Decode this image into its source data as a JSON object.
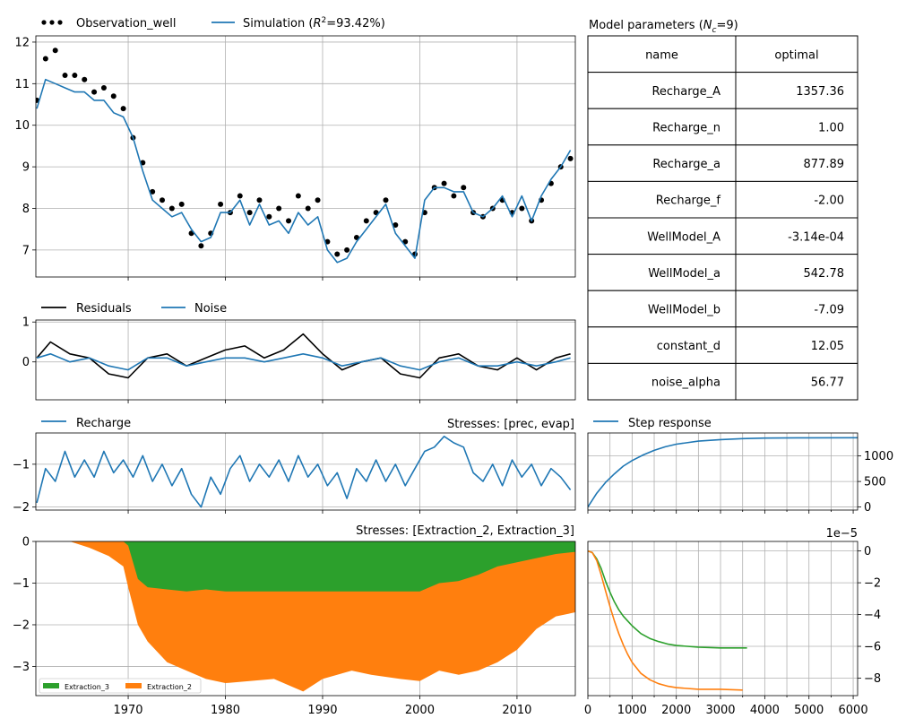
{
  "colors": {
    "observation": "#000000",
    "simulation": "#1f77b4",
    "residuals": "#000000",
    "noise": "#1f77b4",
    "recharge": "#1f77b4",
    "step": "#1f77b4",
    "extraction_3": "#2ca02c",
    "extraction_2": "#ff7f0e",
    "grid": "#b0b0b0"
  },
  "fit_panel": {
    "legend_obs": "Observation_well",
    "legend_sim_prefix": "Simulation (",
    "legend_sim_r2": "R",
    "legend_sim_sup": "2",
    "legend_sim_suffix": "=93.42%)"
  },
  "residual_panel": {
    "legend_res": "Residuals",
    "legend_noise": "Noise"
  },
  "recharge_panel": {
    "legend": "Recharge",
    "title": "Stresses: [prec, evap]"
  },
  "well_panel": {
    "title": "Stresses: [Extraction_2, Extraction_3]",
    "legend_e3": "Extraction_3",
    "legend_e2": "Extraction_2"
  },
  "step_panel": {
    "legend": "Step response",
    "offset_label": "1e−5"
  },
  "params_table": {
    "title_prefix": "Model parameters (",
    "title_n": "N",
    "title_sub": "c",
    "title_suffix": "=9)",
    "header_name": "name",
    "header_optimal": "optimal",
    "rows": [
      {
        "name": "Recharge_A",
        "value": "1357.36"
      },
      {
        "name": "Recharge_n",
        "value": "1.00"
      },
      {
        "name": "Recharge_a",
        "value": "877.89"
      },
      {
        "name": "Recharge_f",
        "value": "-2.00"
      },
      {
        "name": "WellModel_A",
        "value": "-3.14e-04"
      },
      {
        "name": "WellModel_a",
        "value": "542.78"
      },
      {
        "name": "WellModel_b",
        "value": "-7.09"
      },
      {
        "name": "constant_d",
        "value": "12.05"
      },
      {
        "name": "noise_alpha",
        "value": "56.77"
      }
    ]
  },
  "chart_data": [
    {
      "type": "line",
      "panel": "fit",
      "xlim": [
        1960.5,
        2016
      ],
      "ylim": [
        6.35,
        12.15
      ],
      "x_ticks": [
        1970,
        1980,
        1990,
        2000,
        2010
      ],
      "y_ticks": [
        7,
        8,
        9,
        10,
        11,
        12
      ],
      "grid": true,
      "legend_position": "top-left",
      "series": [
        {
          "name": "Observation_well",
          "style": "dots",
          "x": [
            1960.6,
            1961.5,
            1962.5,
            1963.5,
            1964.5,
            1965.5,
            1966.5,
            1967.5,
            1968.5,
            1969.5,
            1970.5,
            1971.5,
            1972.5,
            1973.5,
            1974.5,
            1975.5,
            1976.5,
            1977.5,
            1978.5,
            1979.5,
            1980.5,
            1981.5,
            1982.5,
            1983.5,
            1984.5,
            1985.5,
            1986.5,
            1987.5,
            1988.5,
            1989.5,
            1990.5,
            1991.5,
            1992.5,
            1993.5,
            1994.5,
            1995.5,
            1996.5,
            1997.5,
            1998.5,
            1999.5,
            2000.5,
            2001.5,
            2002.5,
            2003.5,
            2004.5,
            2005.5,
            2006.5,
            2007.5,
            2008.5,
            2009.5,
            2010.5,
            2011.5,
            2012.5,
            2013.5,
            2014.5,
            2015.5
          ],
          "y": [
            10.6,
            11.6,
            11.8,
            11.2,
            11.2,
            11.1,
            10.8,
            10.9,
            10.7,
            10.4,
            9.7,
            9.1,
            8.4,
            8.2,
            8.0,
            8.1,
            7.4,
            7.1,
            7.4,
            8.1,
            7.9,
            8.3,
            7.9,
            8.2,
            7.8,
            8.0,
            7.7,
            8.3,
            8.0,
            8.2,
            7.2,
            6.9,
            7.0,
            7.3,
            7.7,
            7.9,
            8.2,
            7.6,
            7.2,
            6.9,
            7.9,
            8.5,
            8.6,
            8.3,
            8.5,
            7.9,
            7.8,
            8.0,
            8.2,
            7.9,
            8.0,
            7.7,
            8.2,
            8.6,
            9.0,
            9.2
          ]
        },
        {
          "name": "Simulation",
          "style": "line",
          "x": [
            1960.6,
            1961.5,
            1962.5,
            1963.5,
            1964.5,
            1965.5,
            1966.5,
            1967.5,
            1968.5,
            1969.5,
            1970.5,
            1971.5,
            1972.5,
            1973.5,
            1974.5,
            1975.5,
            1976.5,
            1977.5,
            1978.5,
            1979.5,
            1980.5,
            1981.5,
            1982.5,
            1983.5,
            1984.5,
            1985.5,
            1986.5,
            1987.5,
            1988.5,
            1989.5,
            1990.5,
            1991.5,
            1992.5,
            1993.5,
            1994.5,
            1995.5,
            1996.5,
            1997.5,
            1998.5,
            1999.5,
            2000.5,
            2001.5,
            2002.5,
            2003.5,
            2004.5,
            2005.5,
            2006.5,
            2007.5,
            2008.5,
            2009.5,
            2010.5,
            2011.5,
            2012.5,
            2013.5,
            2014.5,
            2015.5
          ],
          "y": [
            10.4,
            11.1,
            11.0,
            10.9,
            10.8,
            10.8,
            10.6,
            10.6,
            10.3,
            10.2,
            9.7,
            8.9,
            8.2,
            8.0,
            7.8,
            7.9,
            7.5,
            7.2,
            7.3,
            7.9,
            7.9,
            8.2,
            7.6,
            8.1,
            7.6,
            7.7,
            7.4,
            7.9,
            7.6,
            7.8,
            7.0,
            6.7,
            6.8,
            7.2,
            7.5,
            7.8,
            8.1,
            7.4,
            7.1,
            6.8,
            8.2,
            8.5,
            8.5,
            8.4,
            8.4,
            7.9,
            7.8,
            8.0,
            8.3,
            7.8,
            8.3,
            7.7,
            8.3,
            8.7,
            9.0,
            9.4
          ]
        }
      ]
    },
    {
      "type": "line",
      "panel": "residuals",
      "xlim": [
        1960.5,
        2016
      ],
      "ylim": [
        -0.95,
        1.05
      ],
      "y_ticks": [
        0,
        1
      ],
      "grid": true,
      "legend_position": "top-left",
      "series": [
        {
          "name": "Residuals",
          "x": [
            1960.6,
            1962,
            1964,
            1966,
            1968,
            1970,
            1972,
            1974,
            1976,
            1978,
            1980,
            1982,
            1984,
            1986,
            1988,
            1990,
            1992,
            1994,
            1996,
            1998,
            2000,
            2002,
            2004,
            2006,
            2008,
            2010,
            2012,
            2014,
            2015.5
          ],
          "y": [
            0.1,
            0.5,
            0.2,
            0.1,
            -0.3,
            -0.4,
            0.1,
            0.2,
            -0.1,
            0.1,
            0.3,
            0.4,
            0.1,
            0.3,
            0.7,
            0.2,
            -0.2,
            0.0,
            0.1,
            -0.3,
            -0.4,
            0.1,
            0.2,
            -0.1,
            -0.2,
            0.1,
            -0.2,
            0.1,
            0.2
          ]
        },
        {
          "name": "Noise",
          "x": [
            1960.6,
            1962,
            1964,
            1966,
            1968,
            1970,
            1972,
            1974,
            1976,
            1978,
            1980,
            1982,
            1984,
            1986,
            1988,
            1990,
            1992,
            1994,
            1996,
            1998,
            2000,
            2002,
            2004,
            2006,
            2008,
            2010,
            2012,
            2014,
            2015.5
          ],
          "y": [
            0.1,
            0.2,
            0.0,
            0.1,
            -0.1,
            -0.2,
            0.1,
            0.1,
            -0.1,
            0.0,
            0.1,
            0.1,
            0.0,
            0.1,
            0.2,
            0.1,
            -0.1,
            0.0,
            0.1,
            -0.1,
            -0.2,
            0.0,
            0.1,
            -0.1,
            -0.1,
            0.0,
            -0.1,
            0.0,
            0.1
          ]
        }
      ]
    },
    {
      "type": "line",
      "panel": "recharge",
      "title": "Stresses: [prec, evap]",
      "xlim": [
        1960.5,
        2016
      ],
      "ylim": [
        -2.07,
        -0.27
      ],
      "y_ticks": [
        -2,
        -1
      ],
      "grid": true,
      "legend_position": "top-left",
      "series": [
        {
          "name": "Recharge",
          "x": [
            1960.6,
            1961.5,
            1962.5,
            1963.5,
            1964.5,
            1965.5,
            1966.5,
            1967.5,
            1968.5,
            1969.5,
            1970.5,
            1971.5,
            1972.5,
            1973.5,
            1974.5,
            1975.5,
            1976.5,
            1977.5,
            1978.5,
            1979.5,
            1980.5,
            1981.5,
            1982.5,
            1983.5,
            1984.5,
            1985.5,
            1986.5,
            1987.5,
            1988.5,
            1989.5,
            1990.5,
            1991.5,
            1992.5,
            1993.5,
            1994.5,
            1995.5,
            1996.5,
            1997.5,
            1998.5,
            1999.5,
            2000.5,
            2001.5,
            2002.5,
            2003.5,
            2004.5,
            2005.5,
            2006.5,
            2007.5,
            2008.5,
            2009.5,
            2010.5,
            2011.5,
            2012.5,
            2013.5,
            2014.5,
            2015.5
          ],
          "y": [
            -1.9,
            -1.1,
            -1.4,
            -0.7,
            -1.3,
            -0.9,
            -1.3,
            -0.7,
            -1.2,
            -0.9,
            -1.3,
            -0.8,
            -1.4,
            -1.0,
            -1.5,
            -1.1,
            -1.7,
            -2.0,
            -1.3,
            -1.7,
            -1.1,
            -0.8,
            -1.4,
            -1.0,
            -1.3,
            -0.9,
            -1.4,
            -0.8,
            -1.3,
            -1.0,
            -1.5,
            -1.2,
            -1.8,
            -1.1,
            -1.4,
            -0.9,
            -1.4,
            -1.0,
            -1.5,
            -1.1,
            -0.7,
            -0.6,
            -0.35,
            -0.5,
            -0.6,
            -1.2,
            -1.4,
            -1.0,
            -1.5,
            -0.9,
            -1.3,
            -1.0,
            -1.5,
            -1.1,
            -1.3,
            -1.6
          ]
        }
      ]
    },
    {
      "type": "area",
      "panel": "wells",
      "title": "Stresses: [Extraction_2, Extraction_3]",
      "xlim": [
        1960.5,
        2016
      ],
      "ylim": [
        -3.7,
        0
      ],
      "x_ticks": [
        1970,
        1980,
        1990,
        2000,
        2010
      ],
      "y_ticks": [
        -3,
        -2,
        -1,
        0
      ],
      "grid": true,
      "legend_position": "bottom-left",
      "series": [
        {
          "name": "Extraction_3",
          "stacked_from_zero": true,
          "x": [
            1960.5,
            1964,
            1966,
            1968,
            1969.5,
            1970,
            1971,
            1972,
            1974,
            1976,
            1978,
            1980,
            1985,
            1990,
            1995,
            1998,
            2000,
            2002,
            2004,
            2006,
            2008,
            2010,
            2012,
            2014,
            2016
          ],
          "y": [
            0,
            0,
            0,
            0,
            0,
            -0.1,
            -0.9,
            -1.1,
            -1.15,
            -1.2,
            -1.15,
            -1.2,
            -1.2,
            -1.2,
            -1.2,
            -1.2,
            -1.2,
            -1.0,
            -0.95,
            -0.8,
            -0.6,
            -0.5,
            -0.4,
            -0.3,
            -0.25
          ]
        },
        {
          "name": "Extraction_2",
          "stacked_below": "Extraction_3",
          "x": [
            1960.5,
            1964,
            1966,
            1968,
            1969.5,
            1970,
            1971,
            1972,
            1974,
            1976,
            1978,
            1980,
            1985,
            1988,
            1990,
            1993,
            1995,
            1998,
            2000,
            2002,
            2004,
            2006,
            2008,
            2010,
            2012,
            2014,
            2016
          ],
          "y": [
            0,
            0,
            -0.15,
            -0.35,
            -0.6,
            -1.1,
            -2.0,
            -2.4,
            -2.9,
            -3.1,
            -3.3,
            -3.4,
            -3.3,
            -3.6,
            -3.3,
            -3.1,
            -3.2,
            -3.3,
            -3.35,
            -3.1,
            -3.2,
            -3.1,
            -2.9,
            -2.6,
            -2.1,
            -1.8,
            -1.7
          ]
        }
      ]
    },
    {
      "type": "line",
      "panel": "step_response_recharge",
      "xlim": [
        0,
        6100
      ],
      "ylim": [
        -60,
        1450
      ],
      "y_ticks": [
        0,
        500,
        1000
      ],
      "grid": true,
      "legend_position": "top-left",
      "series": [
        {
          "name": "Step response",
          "x": [
            0,
            200,
            400,
            600,
            800,
            1000,
            1250,
            1500,
            1750,
            2000,
            2500,
            3000,
            3500,
            4000,
            5000,
            6100
          ],
          "y": [
            0,
            270,
            480,
            650,
            800,
            910,
            1020,
            1110,
            1180,
            1230,
            1290,
            1320,
            1340,
            1350,
            1355,
            1357
          ]
        }
      ]
    },
    {
      "type": "line",
      "panel": "step_response_wells",
      "xlim": [
        0,
        6100
      ],
      "ylim": [
        -9.1,
        0.6
      ],
      "y_ticks": [
        -8,
        -6,
        -4,
        -2,
        0
      ],
      "y_scale": "1e-5",
      "grid": true,
      "series": [
        {
          "name": "Extraction_3",
          "x": [
            0,
            100,
            200,
            300,
            400,
            500,
            600,
            700,
            800,
            900,
            1000,
            1200,
            1400,
            1600,
            1800,
            2000,
            2500,
            3000,
            3600
          ],
          "y": [
            0,
            -0.1,
            -0.5,
            -1.1,
            -1.9,
            -2.6,
            -3.2,
            -3.7,
            -4.1,
            -4.4,
            -4.7,
            -5.2,
            -5.5,
            -5.7,
            -5.85,
            -5.95,
            -6.05,
            -6.1,
            -6.1
          ]
        },
        {
          "name": "Extraction_2",
          "x": [
            0,
            100,
            200,
            300,
            400,
            500,
            600,
            700,
            800,
            900,
            1000,
            1200,
            1400,
            1600,
            1800,
            2000,
            2500,
            3000,
            3500
          ],
          "y": [
            0,
            -0.1,
            -0.6,
            -1.5,
            -2.5,
            -3.5,
            -4.4,
            -5.2,
            -5.9,
            -6.5,
            -7.0,
            -7.7,
            -8.1,
            -8.35,
            -8.5,
            -8.6,
            -8.7,
            -8.7,
            -8.75
          ]
        }
      ]
    }
  ]
}
